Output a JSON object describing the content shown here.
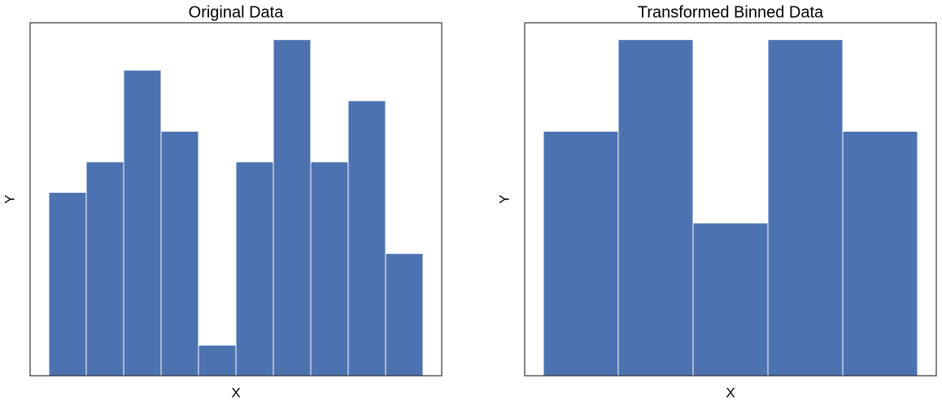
{
  "chart_data": [
    {
      "type": "histogram",
      "title": "Original Data",
      "x_label": "X",
      "y_label": "Y",
      "bins": [
        0,
        1,
        2,
        3,
        4,
        5,
        6,
        7,
        8,
        9,
        10
      ],
      "values": [
        6,
        7,
        10,
        8,
        1,
        7,
        11,
        7,
        9,
        4
      ],
      "color": "#4c72b0",
      "xlim": [
        -0.5,
        10.5
      ],
      "ylim": [
        0,
        11.55
      ]
    },
    {
      "type": "histogram",
      "title": "Transformed Binned Data",
      "x_label": "X",
      "y_label": "Y",
      "bins": [
        0,
        2,
        4,
        6,
        8,
        10
      ],
      "values": [
        8,
        11,
        5,
        11,
        8
      ],
      "color": "#4c72b0",
      "xlim": [
        -0.5,
        10.5
      ],
      "ylim": [
        0,
        11.55
      ]
    }
  ]
}
